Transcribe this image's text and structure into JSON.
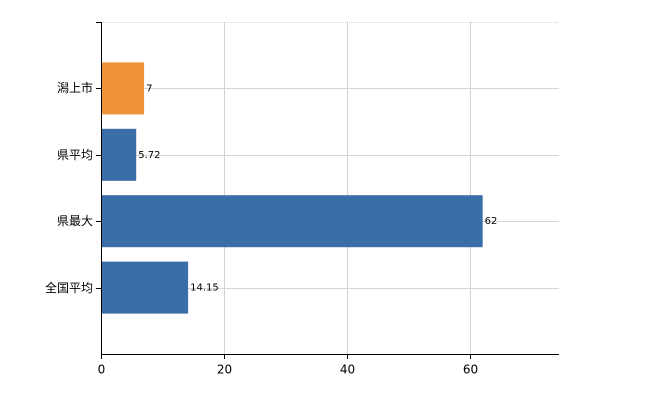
{
  "chart_data": {
    "type": "bar",
    "orientation": "horizontal",
    "categories": [
      "潟上市",
      "県平均",
      "県最大",
      "全国平均"
    ],
    "values": [
      7,
      5.72,
      62,
      14.15
    ],
    "colors": [
      "#f0943a",
      "#3a6ea8",
      "#3a6ea8",
      "#3a6ea8"
    ],
    "xlim": [
      0,
      74.4
    ],
    "xticks": [
      0,
      20,
      40,
      60
    ],
    "grid": true
  }
}
